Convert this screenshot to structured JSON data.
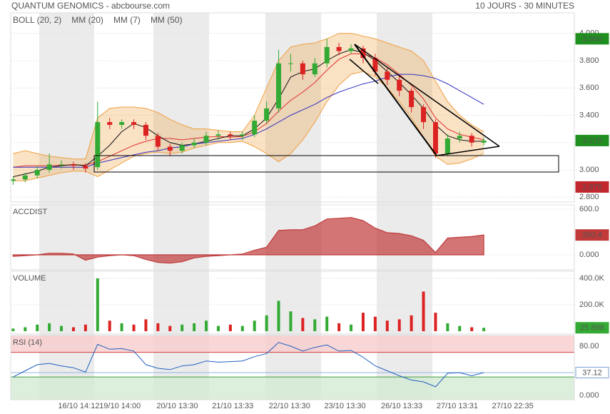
{
  "chart_data": [
    {
      "type": "candlestick",
      "title": "QUANTUM GENOMICS - abcbourse.com",
      "subtitle": "10 JOURS - 30 MINUTES",
      "x": [
        0,
        1,
        2,
        3,
        4,
        5,
        6,
        7,
        8,
        9,
        10,
        11,
        12,
        13,
        14,
        15,
        16,
        17,
        18,
        19,
        20,
        21,
        22,
        23,
        24,
        25,
        26,
        27,
        28,
        29,
        30,
        31,
        32,
        33,
        34,
        35,
        36,
        37,
        38,
        39
      ],
      "xlim": [
        -0.2,
        46.5
      ],
      "xticks": [
        {
          "value": 5.44,
          "label": "16/10 14:12"
        },
        {
          "value": 8.86,
          "label": "19/10 14:00"
        },
        {
          "value": 13.6,
          "label": "20/10 13:30"
        },
        {
          "value": 18.2,
          "label": "21/10 13:33"
        },
        {
          "value": 22.9,
          "label": "22/10 13:30"
        },
        {
          "value": 27.5,
          "label": "23/10 13:30"
        },
        {
          "value": 32.2,
          "label": "26/10 13:33"
        },
        {
          "value": 36.8,
          "label": "27/10 13:31"
        },
        {
          "value": 41.4,
          "label": "27/10 22:35"
        }
      ],
      "ylim": [
        2.765,
        4.15
      ],
      "yticks": [
        {
          "value": 4,
          "label": "4.000"
        },
        {
          "value": 3.8,
          "label": "3.800"
        },
        {
          "value": 3.6,
          "label": "3.600"
        },
        {
          "value": 3.4,
          "label": "3.400"
        },
        {
          "value": 3.2,
          "label": "3.200"
        },
        {
          "value": 3,
          "label": "3.000"
        },
        {
          "value": 2.8,
          "label": "2.800"
        }
      ],
      "grid": true,
      "up_color": "#33aa33",
      "down_color": "#dd2222",
      "open": [
        2.92,
        2.93,
        2.96,
        3.0,
        3.04,
        3.04,
        3.03,
        3.02,
        3.35,
        3.33,
        3.35,
        3.33,
        3.25,
        3.17,
        3.14,
        3.18,
        3.2,
        3.25,
        3.26,
        3.25,
        3.26,
        3.36,
        3.45,
        3.78,
        3.78,
        3.7,
        3.78,
        3.9,
        3.87,
        3.89,
        3.82,
        3.72,
        3.66,
        3.58,
        3.46,
        3.35,
        3.12,
        3.23,
        3.25,
        3.2
      ],
      "high": [
        2.95,
        2.98,
        3.03,
        3.12,
        3.07,
        3.06,
        3.05,
        3.5,
        3.38,
        3.37,
        3.37,
        3.35,
        3.27,
        3.19,
        3.2,
        3.23,
        3.28,
        3.29,
        3.28,
        3.28,
        3.4,
        3.5,
        3.88,
        3.85,
        3.8,
        3.82,
        3.96,
        3.93,
        3.92,
        3.91,
        3.85,
        3.75,
        3.69,
        3.6,
        3.48,
        3.37,
        3.26,
        3.28,
        3.27,
        3.24
      ],
      "low": [
        2.89,
        2.91,
        2.94,
        2.98,
        3.01,
        3.0,
        2.98,
        3.0,
        3.3,
        3.3,
        3.3,
        3.22,
        3.14,
        3.1,
        3.12,
        3.16,
        3.18,
        3.22,
        3.22,
        3.22,
        3.24,
        3.34,
        3.42,
        3.72,
        3.66,
        3.68,
        3.75,
        3.84,
        3.85,
        3.78,
        3.69,
        3.62,
        3.54,
        3.42,
        3.3,
        3.09,
        3.1,
        3.2,
        3.17,
        3.18
      ],
      "close": [
        2.93,
        2.96,
        3.0,
        3.04,
        3.04,
        3.03,
        3.01,
        3.35,
        3.33,
        3.35,
        3.33,
        3.25,
        3.17,
        3.14,
        3.18,
        3.2,
        3.25,
        3.26,
        3.25,
        3.26,
        3.36,
        3.45,
        3.78,
        3.78,
        3.7,
        3.78,
        3.9,
        3.87,
        3.89,
        3.82,
        3.72,
        3.66,
        3.58,
        3.46,
        3.35,
        3.12,
        3.23,
        3.25,
        3.2,
        3.215
      ],
      "last_color": "#1f8f1f",
      "price_labels": [
        {
          "value": 3.96,
          "label": "3.960",
          "color": "#1f8f1f"
        },
        {
          "value": 2.875,
          "label": "2.875",
          "color": "#c0282e"
        }
      ],
      "overlays": [
        {
          "name": "BOLL (20, 2)",
          "color": "#f0a040",
          "upper": [
            3.12,
            3.14,
            3.12,
            3.1,
            3.09,
            3.08,
            3.08,
            3.38,
            3.45,
            3.46,
            3.46,
            3.45,
            3.42,
            3.37,
            3.33,
            3.3,
            3.3,
            3.29,
            3.28,
            3.28,
            3.4,
            3.6,
            3.8,
            3.9,
            3.92,
            3.93,
            3.96,
            4.0,
            4.0,
            3.98,
            3.96,
            3.93,
            3.9,
            3.87,
            3.8,
            3.65,
            3.5,
            3.4,
            3.33,
            3.28
          ],
          "lower": [
            2.92,
            2.92,
            2.94,
            2.96,
            2.98,
            2.99,
            2.99,
            2.95,
            3.0,
            3.05,
            3.1,
            3.12,
            3.13,
            3.12,
            3.13,
            3.16,
            3.18,
            3.2,
            3.2,
            3.21,
            3.17,
            3.12,
            3.06,
            3.12,
            3.22,
            3.35,
            3.5,
            3.62,
            3.7,
            3.72,
            3.68,
            3.6,
            3.5,
            3.38,
            3.24,
            3.1,
            3.04,
            3.05,
            3.08,
            3.12
          ]
        },
        {
          "name": "MM (20)",
          "color": "#e03030",
          "values": [
            3.02,
            3.03,
            3.03,
            3.03,
            3.035,
            3.035,
            3.035,
            3.06,
            3.1,
            3.14,
            3.18,
            3.21,
            3.23,
            3.23,
            3.22,
            3.23,
            3.24,
            3.245,
            3.24,
            3.245,
            3.28,
            3.34,
            3.43,
            3.51,
            3.57,
            3.64,
            3.73,
            3.81,
            3.85,
            3.85,
            3.82,
            3.77,
            3.7,
            3.62,
            3.52,
            3.38,
            3.3,
            3.26,
            3.24,
            3.22
          ]
        },
        {
          "name": "MM (7)",
          "color": "#111111",
          "values": [
            2.95,
            2.97,
            2.99,
            3.02,
            3.03,
            3.04,
            3.03,
            3.1,
            3.18,
            3.28,
            3.34,
            3.31,
            3.25,
            3.2,
            3.18,
            3.19,
            3.21,
            3.23,
            3.25,
            3.25,
            3.3,
            3.38,
            3.52,
            3.68,
            3.72,
            3.74,
            3.8,
            3.85,
            3.88,
            3.86,
            3.8,
            3.72,
            3.64,
            3.55,
            3.45,
            3.33,
            3.25,
            3.22,
            3.21,
            3.21
          ]
        },
        {
          "name": "MM (50)",
          "color": "#3030c0",
          "values": [
            3.02,
            3.02,
            3.02,
            3.02,
            3.02,
            3.02,
            3.02,
            3.05,
            3.07,
            3.09,
            3.11,
            3.13,
            3.14,
            3.16,
            3.17,
            3.19,
            3.2,
            3.21,
            3.22,
            3.23,
            3.26,
            3.3,
            3.35,
            3.4,
            3.44,
            3.48,
            3.53,
            3.57,
            3.6,
            3.63,
            3.65,
            3.68,
            3.7,
            3.7,
            3.69,
            3.67,
            3.63,
            3.58,
            3.53,
            3.48
          ]
        }
      ]
    },
    {
      "type": "area",
      "title": "ACCDIST",
      "color": "#c03a3a",
      "values": [
        -20,
        -10,
        0,
        20,
        20,
        10,
        -70,
        -30,
        -10,
        0,
        -10,
        -60,
        -100,
        -110,
        -90,
        -40,
        -20,
        -10,
        0,
        10,
        60,
        100,
        320,
        330,
        330,
        380,
        470,
        480,
        490,
        450,
        350,
        290,
        280,
        250,
        190,
        30,
        220,
        230,
        240,
        260.4
      ],
      "ylim": [
        -197,
        656
      ],
      "yticks": [
        {
          "value": 600,
          "label": "600.0"
        },
        {
          "value": 0,
          "label": "0.000"
        }
      ],
      "grid": true
    },
    {
      "type": "volume",
      "title": "VOLUME",
      "values": [
        20000,
        30000,
        50000,
        60000,
        40000,
        30000,
        50000,
        400000,
        80000,
        60000,
        50000,
        90000,
        60000,
        40000,
        50000,
        60000,
        80000,
        40000,
        50000,
        40000,
        80000,
        120000,
        230000,
        150000,
        100000,
        90000,
        110000,
        60000,
        50000,
        140000,
        110000,
        80000,
        90000,
        120000,
        300000,
        140000,
        60000,
        40000,
        30000,
        25896
      ],
      "last_label": "25 896",
      "ylim": [
        -21600,
        454000
      ],
      "yticks": [
        {
          "value": 400000,
          "label": "400.0K"
        },
        {
          "value": 200000,
          "label": "200.0K"
        }
      ],
      "grid": true
    },
    {
      "type": "line",
      "title": "RSI (14)",
      "color": "#2060c0",
      "values": [
        30,
        40,
        50,
        52,
        48,
        45,
        38,
        83,
        75,
        76,
        72,
        50,
        44,
        42,
        48,
        50,
        56,
        54,
        55,
        56,
        63,
        68,
        86,
        80,
        72,
        78,
        82,
        72,
        73,
        62,
        48,
        40,
        32,
        25,
        22,
        14,
        36,
        37,
        32,
        37.12
      ],
      "ylim": [
        -7,
        97.4
      ],
      "yticks": [
        {
          "value": 80,
          "label": "80.00"
        },
        {
          "value": 0,
          "label": "0.000"
        }
      ],
      "grid": true,
      "overbought": 70,
      "oversold": 30,
      "overbought_color": "#f9cccc",
      "oversold_color": "#d3ead3"
    }
  ]
}
